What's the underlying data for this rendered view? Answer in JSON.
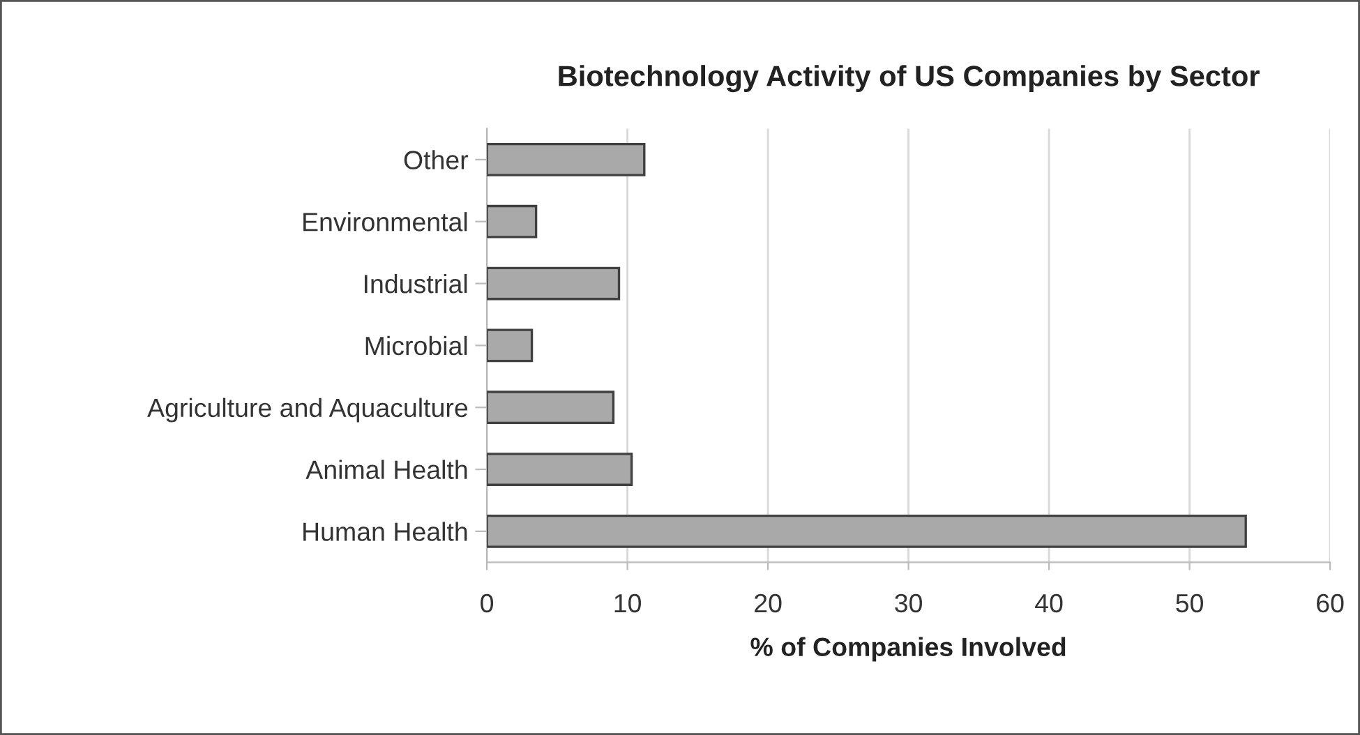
{
  "chart_data": {
    "type": "bar",
    "orientation": "horizontal",
    "title": "Biotechnology Activity of US Companies by Sector",
    "xlabel": "% of Companies Involved",
    "categories": [
      "Other",
      "Environmental",
      "Industrial",
      "Microbial",
      "Agriculture and Aquaculture",
      "Animal Health",
      "Human Health"
    ],
    "values": [
      11.2,
      3.5,
      9.4,
      3.2,
      9.0,
      10.3,
      54.0
    ],
    "color": "#a9a9a9",
    "xlim": [
      0,
      60
    ],
    "xticks": [
      0,
      10,
      20,
      30,
      40,
      50,
      60
    ],
    "grid": "x"
  }
}
